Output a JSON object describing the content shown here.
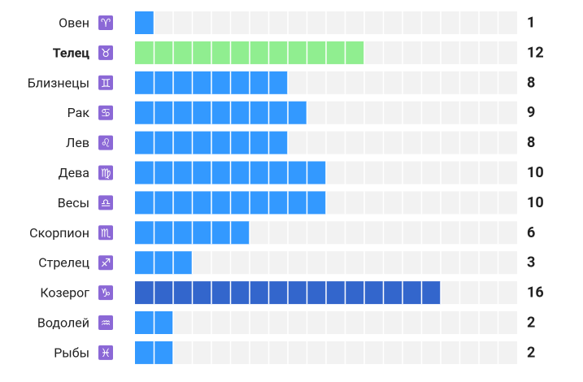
{
  "chart_data": {
    "type": "bar",
    "orientation": "horizontal",
    "categories": [
      "Овен",
      "Телец",
      "Близнецы",
      "Рак",
      "Лев",
      "Дева",
      "Весы",
      "Скорпион",
      "Стрелец",
      "Козерог",
      "Водолей",
      "Рыбы"
    ],
    "symbols": [
      "♈",
      "♉",
      "♊",
      "♋",
      "♌",
      "♍",
      "♎",
      "♏",
      "♐",
      "♑",
      "♒",
      "♓"
    ],
    "values": [
      1,
      12,
      8,
      9,
      8,
      10,
      10,
      6,
      3,
      16,
      2,
      2
    ],
    "colors": [
      "#3399ff",
      "#90ee90",
      "#3399ff",
      "#3399ff",
      "#3399ff",
      "#3399ff",
      "#3399ff",
      "#3399ff",
      "#3399ff",
      "#3366cc",
      "#3399ff",
      "#3399ff"
    ],
    "bold": [
      false,
      true,
      false,
      false,
      false,
      false,
      false,
      false,
      false,
      false,
      false,
      false
    ],
    "xlim": [
      0,
      20
    ]
  }
}
